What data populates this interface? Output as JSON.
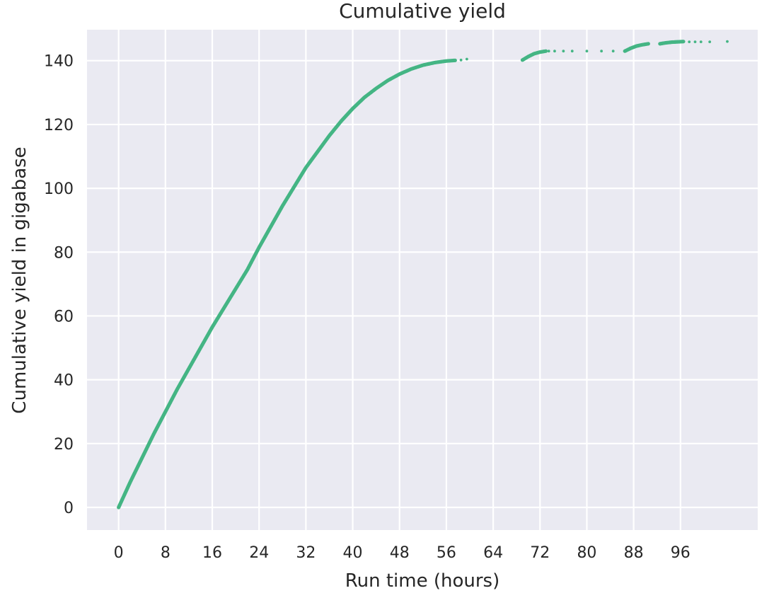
{
  "chart_data": {
    "type": "scatter",
    "title": "Cumulative yield",
    "xlabel": "Run time (hours)",
    "ylabel": "Cumulative yield in gigabase",
    "xlim": [
      -5.4,
      109.2
    ],
    "ylim": [
      -7.1,
      149.7
    ],
    "x_ticks": [
      0,
      8,
      16,
      24,
      32,
      40,
      48,
      56,
      64,
      72,
      80,
      88,
      96
    ],
    "y_ticks": [
      0,
      20,
      40,
      60,
      80,
      100,
      120,
      140
    ],
    "grid": true,
    "marker_color": "#44b584",
    "series": [
      {
        "segments": [
          {
            "style": "dense",
            "points": [
              [
                0,
                0
              ],
              [
                2,
                8
              ],
              [
                4,
                15.5
              ],
              [
                6,
                23
              ],
              [
                8,
                30
              ],
              [
                10,
                37
              ],
              [
                12,
                43.5
              ],
              [
                14,
                50
              ],
              [
                16,
                56.5
              ],
              [
                18,
                62.5
              ],
              [
                20,
                68.5
              ],
              [
                22,
                74.5
              ],
              [
                24,
                81.5
              ],
              [
                26,
                88
              ],
              [
                28,
                94.5
              ],
              [
                30,
                100.5
              ],
              [
                32,
                106.5
              ],
              [
                34,
                111.5
              ],
              [
                36,
                116.5
              ],
              [
                38,
                121
              ],
              [
                40,
                125
              ],
              [
                42,
                128.5
              ],
              [
                44,
                131.3
              ],
              [
                46,
                133.8
              ],
              [
                48,
                135.8
              ],
              [
                50,
                137.4
              ],
              [
                52,
                138.6
              ],
              [
                54,
                139.4
              ],
              [
                56,
                139.9
              ],
              [
                57.5,
                140.1
              ]
            ]
          },
          {
            "style": "dense",
            "points": [
              [
                69,
                140.2
              ],
              [
                70,
                141.3
              ],
              [
                71,
                142.2
              ],
              [
                72,
                142.7
              ],
              [
                73,
                143
              ]
            ]
          },
          {
            "style": "dense",
            "points": [
              [
                86.5,
                143
              ],
              [
                87.5,
                143.9
              ],
              [
                88.5,
                144.6
              ],
              [
                89.5,
                145
              ],
              [
                90.5,
                145.3
              ]
            ]
          },
          {
            "style": "dense",
            "points": [
              [
                92.5,
                145.3
              ],
              [
                93.5,
                145.6
              ],
              [
                94.5,
                145.8
              ],
              [
                95.5,
                145.9
              ],
              [
                96.5,
                146
              ]
            ]
          }
        ],
        "sparse_points": [
          [
            58.5,
            140.2
          ],
          [
            59.5,
            140.5
          ],
          [
            73.5,
            143
          ],
          [
            74.5,
            143
          ],
          [
            76,
            143
          ],
          [
            77.5,
            143
          ],
          [
            80,
            143
          ],
          [
            82.5,
            143
          ],
          [
            84.5,
            143
          ],
          [
            97.5,
            145.9
          ],
          [
            98.5,
            145.9
          ],
          [
            99.5,
            145.9
          ],
          [
            101,
            145.9
          ],
          [
            104,
            146
          ]
        ]
      }
    ]
  }
}
